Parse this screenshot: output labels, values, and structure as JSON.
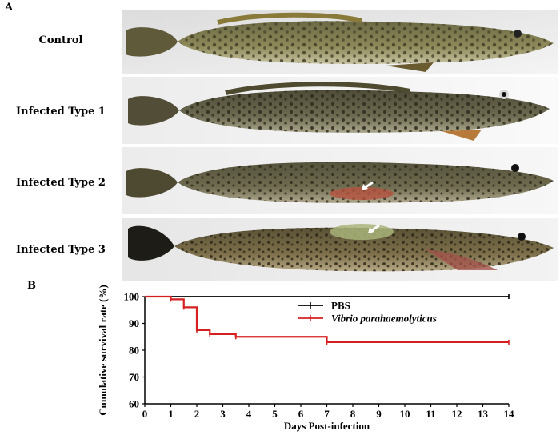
{
  "panel_a": {
    "letter": "A",
    "rows": [
      {
        "label": "Control"
      },
      {
        "label": "Infected Type 1"
      },
      {
        "label": "Infected Type 2"
      },
      {
        "label": "Infected Type 3"
      }
    ]
  },
  "panel_b": {
    "letter": "B"
  },
  "chart_data": {
    "type": "line",
    "step": true,
    "xlabel": "Days Post-infection",
    "ylabel": "Cumulative survival rate (%)",
    "xlim": [
      0,
      14
    ],
    "ylim": [
      60,
      100
    ],
    "xticks": [
      0,
      1,
      2,
      3,
      4,
      5,
      6,
      7,
      8,
      9,
      10,
      11,
      12,
      13,
      14
    ],
    "yticks": [
      60,
      70,
      80,
      90,
      100
    ],
    "legend_position": "top-right",
    "series": [
      {
        "name": "PBS",
        "color": "#000000",
        "x": [
          0,
          14
        ],
        "y": [
          100,
          100
        ]
      },
      {
        "name": "Vibrio parahaemolyticus",
        "color": "#d62020",
        "italic": true,
        "x": [
          0,
          1,
          1.5,
          2,
          2.5,
          3.5,
          7,
          14
        ],
        "y": [
          100,
          99,
          96,
          87.5,
          86,
          85,
          83,
          83
        ]
      }
    ]
  }
}
